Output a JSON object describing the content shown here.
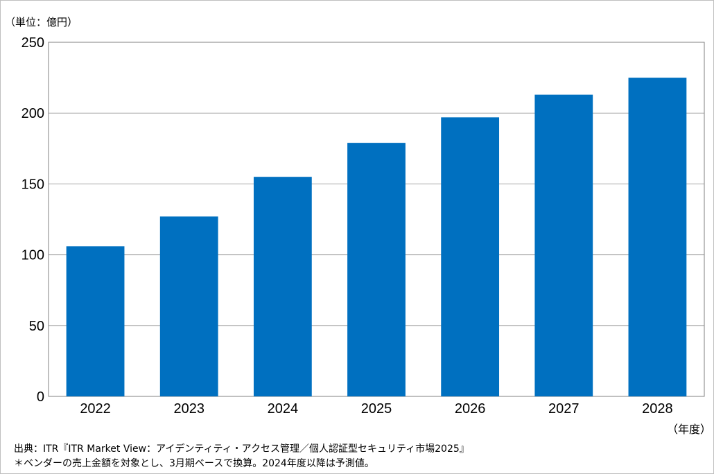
{
  "chart_data": {
    "type": "bar",
    "unit_label": "（単位：億円）",
    "x_unit_label": "（年度）",
    "categories": [
      "2022",
      "2023",
      "2024",
      "2025",
      "2026",
      "2027",
      "2028"
    ],
    "values": [
      106,
      127,
      155,
      179,
      197,
      213,
      225
    ],
    "ylim": [
      0,
      250
    ],
    "yticks": [
      0,
      50,
      100,
      150,
      200,
      250
    ],
    "bar_color": "#0070c0",
    "grid": true,
    "legend": "none"
  },
  "notes": {
    "source": "出典：ITR『ITR Market View：アイデンティティ・アクセス管理／個人認証型セキュリティ市場2025』",
    "footnote": "＊ベンダーの売上金額を対象とし、3月期ベースで換算。2024年度以降は予測値。"
  }
}
